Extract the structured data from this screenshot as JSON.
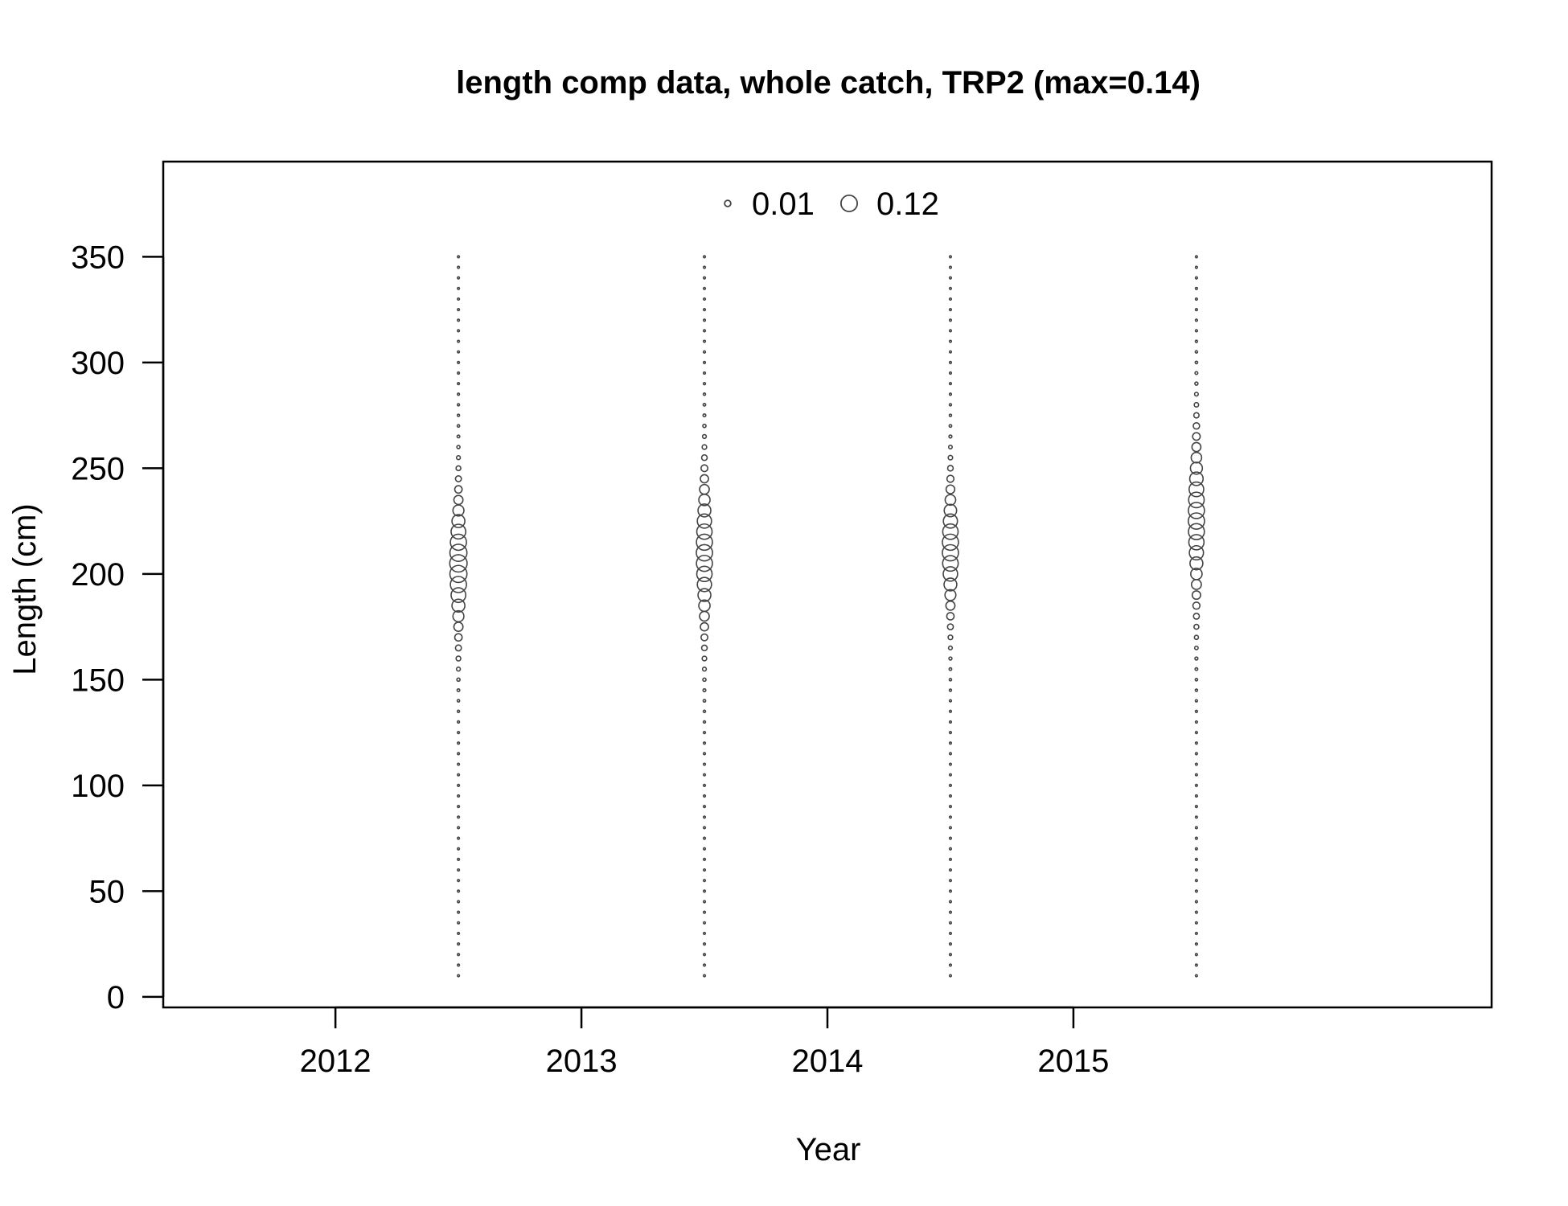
{
  "chart_data": {
    "type": "bubble",
    "title": "length comp data, whole catch, TRP2 (max=0.14)",
    "xlabel": "Year",
    "ylabel": "Length (cm)",
    "xlim": [
      2011.3,
      2016.7
    ],
    "ylim": [
      -5,
      395
    ],
    "x_ticks": [
      2012,
      2013,
      2014,
      2015
    ],
    "y_ticks": [
      0,
      50,
      100,
      150,
      200,
      250,
      300,
      350
    ],
    "max_proportion": 0.14,
    "legend": {
      "placement": "top",
      "entries": [
        {
          "label": "0.01",
          "value": 0.01
        },
        {
          "label": "0.12",
          "value": 0.12
        }
      ]
    },
    "length_bin_width": 5,
    "length_range": [
      10,
      350
    ],
    "samples": [
      {
        "year": 2012.5,
        "mean": 205,
        "sd": 17,
        "peak": 0.14
      },
      {
        "year": 2013.5,
        "mean": 210,
        "sd": 19,
        "peak": 0.12
      },
      {
        "year": 2014.5,
        "mean": 212,
        "sd": 16,
        "peak": 0.12
      },
      {
        "year": 2015.5,
        "mean": 226,
        "sd": 20,
        "peak": 0.12
      }
    ],
    "colors": {
      "marker_stroke": "#444444",
      "axis": "#000000"
    }
  }
}
